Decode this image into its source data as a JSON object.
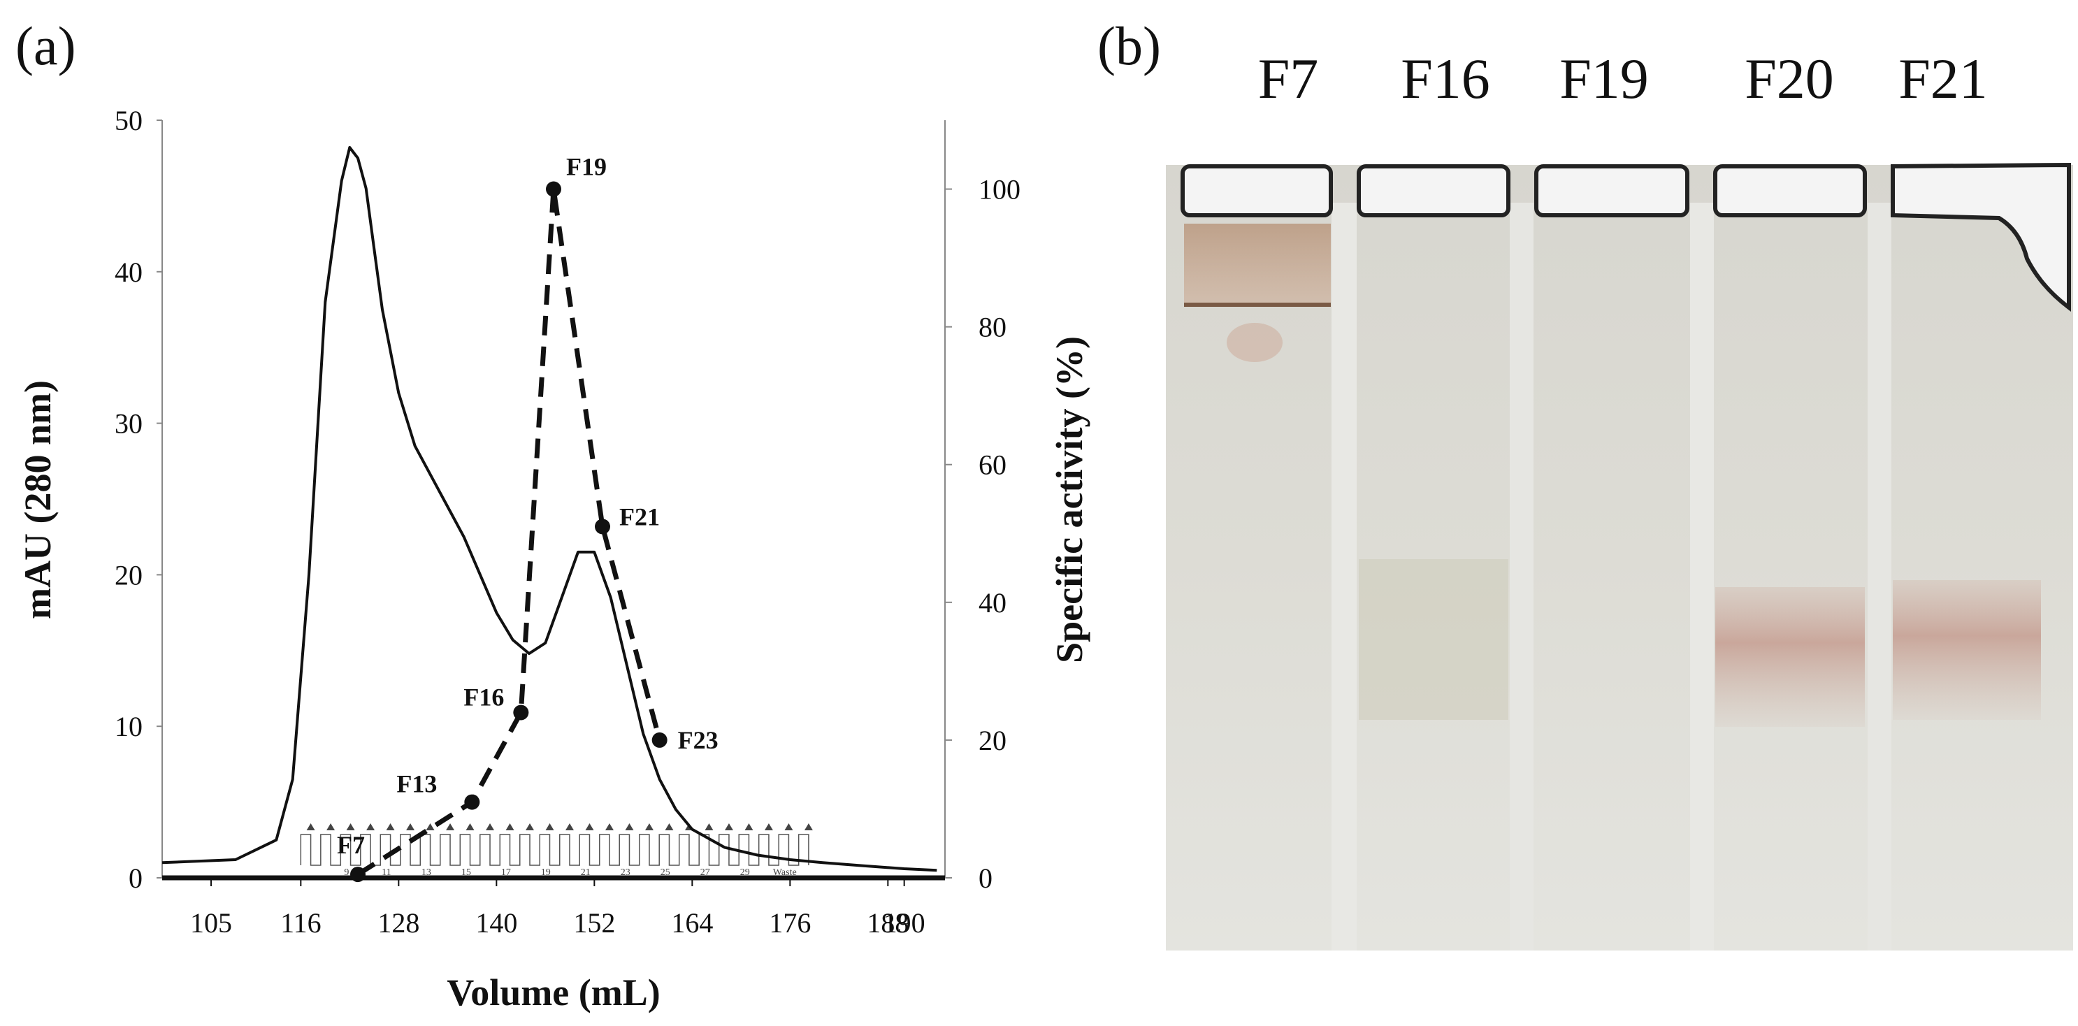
{
  "panels": {
    "a_label": "(a)",
    "b_label": "(b)"
  },
  "chart_data": {
    "type": "line",
    "xlabel": "Volume (mL)",
    "ylabel_left": "mAU (280 nm)",
    "ylabel_right": "Specific activity (%)",
    "x_ticks": [
      105,
      116,
      128,
      140,
      152,
      164,
      176,
      188,
      190
    ],
    "x_range": [
      99,
      195
    ],
    "y_left_ticks": [
      0,
      10,
      20,
      30,
      40,
      50
    ],
    "y_left_range": [
      0,
      50
    ],
    "y_right_ticks": [
      0,
      20,
      40,
      60,
      80,
      100
    ],
    "y_right_range": [
      0,
      110
    ],
    "grid": false,
    "series": [
      {
        "axis": "left",
        "style": "solid",
        "x": [
          99,
          108,
          113,
          115,
          117,
          119,
          121,
          122,
          123,
          124,
          125,
          126,
          128,
          130,
          133,
          136,
          138,
          140,
          142,
          144,
          146,
          148,
          150,
          152,
          154,
          156,
          158,
          160,
          162,
          164,
          168,
          172,
          176,
          180,
          185,
          190,
          194
        ],
        "y": [
          1.0,
          1.2,
          2.5,
          6.5,
          20,
          38,
          46,
          48.2,
          47.5,
          45.5,
          41.5,
          37.5,
          32,
          28.5,
          25.5,
          22.5,
          20,
          17.5,
          15.7,
          14.8,
          15.5,
          18.5,
          21.5,
          21.5,
          18.5,
          14,
          9.5,
          6.5,
          4.5,
          3.2,
          2.0,
          1.5,
          1.2,
          1.0,
          0.8,
          0.6,
          0.5
        ]
      },
      {
        "axis": "right",
        "style": "dashed",
        "x": [
          123,
          137,
          143,
          147,
          153,
          160
        ],
        "y": [
          0.5,
          11,
          24,
          100,
          51,
          20
        ],
        "labels": [
          "F7",
          "F13",
          "F16",
          "F19",
          "F21",
          "F23"
        ]
      }
    ],
    "fraction_markers": [
      "9",
      "11",
      "13",
      "15",
      "17",
      "19",
      "21",
      "23",
      "25",
      "27",
      "29",
      "Waste"
    ]
  },
  "gel": {
    "lanes": [
      "F7",
      "F16",
      "F19",
      "F20",
      "F21"
    ],
    "colors": {
      "background": "#dcdcd6",
      "band": "#b87a6a",
      "well": "#f2f2f2"
    }
  }
}
